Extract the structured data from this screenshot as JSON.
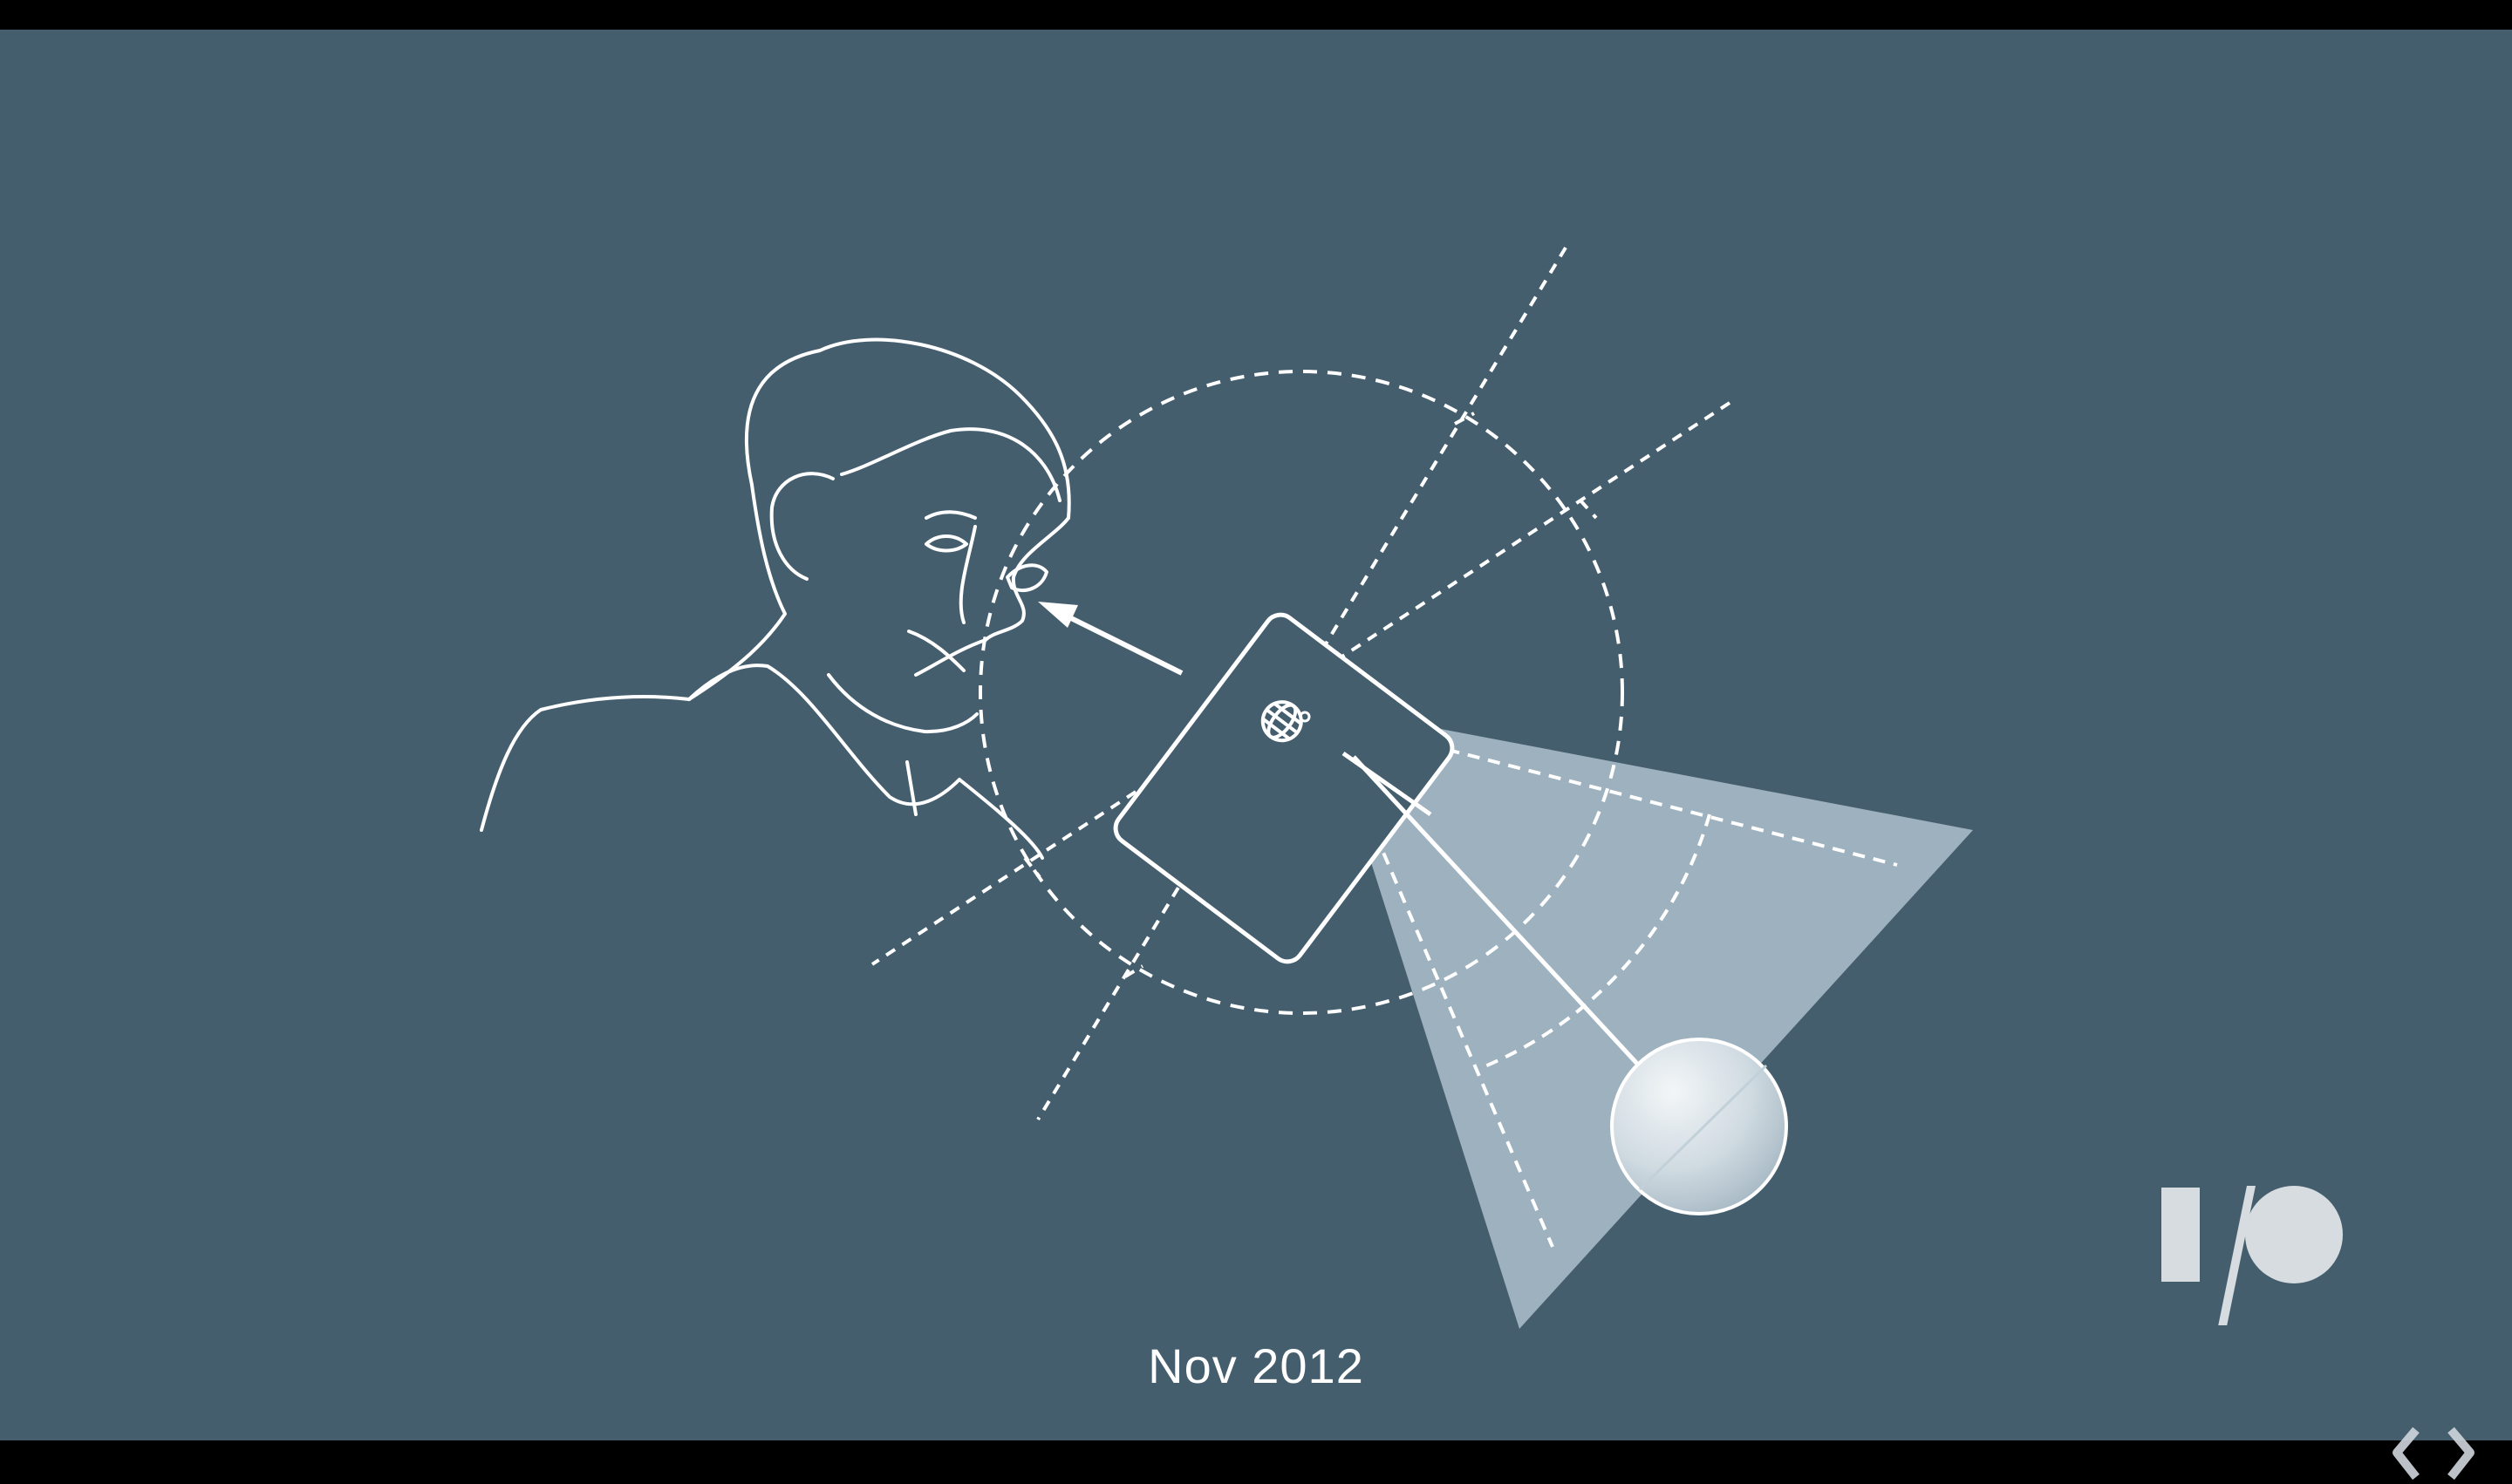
{
  "slide": {
    "caption": "Nov 2012",
    "logo": "google-io-logo",
    "watermark": "player-chevron-icon"
  },
  "colors": {
    "background": "#455e6e",
    "letterbox": "#000000",
    "line": "#ffffff",
    "cone": "#a6b9c6",
    "logo": "#d6dce0"
  },
  "diagram": {
    "elements": [
      "person-face-outline",
      "sight-arrow",
      "phone-tablet",
      "globe-icon",
      "dashed-sphere",
      "dashed-axes",
      "light-cone",
      "sun-sphere"
    ]
  }
}
